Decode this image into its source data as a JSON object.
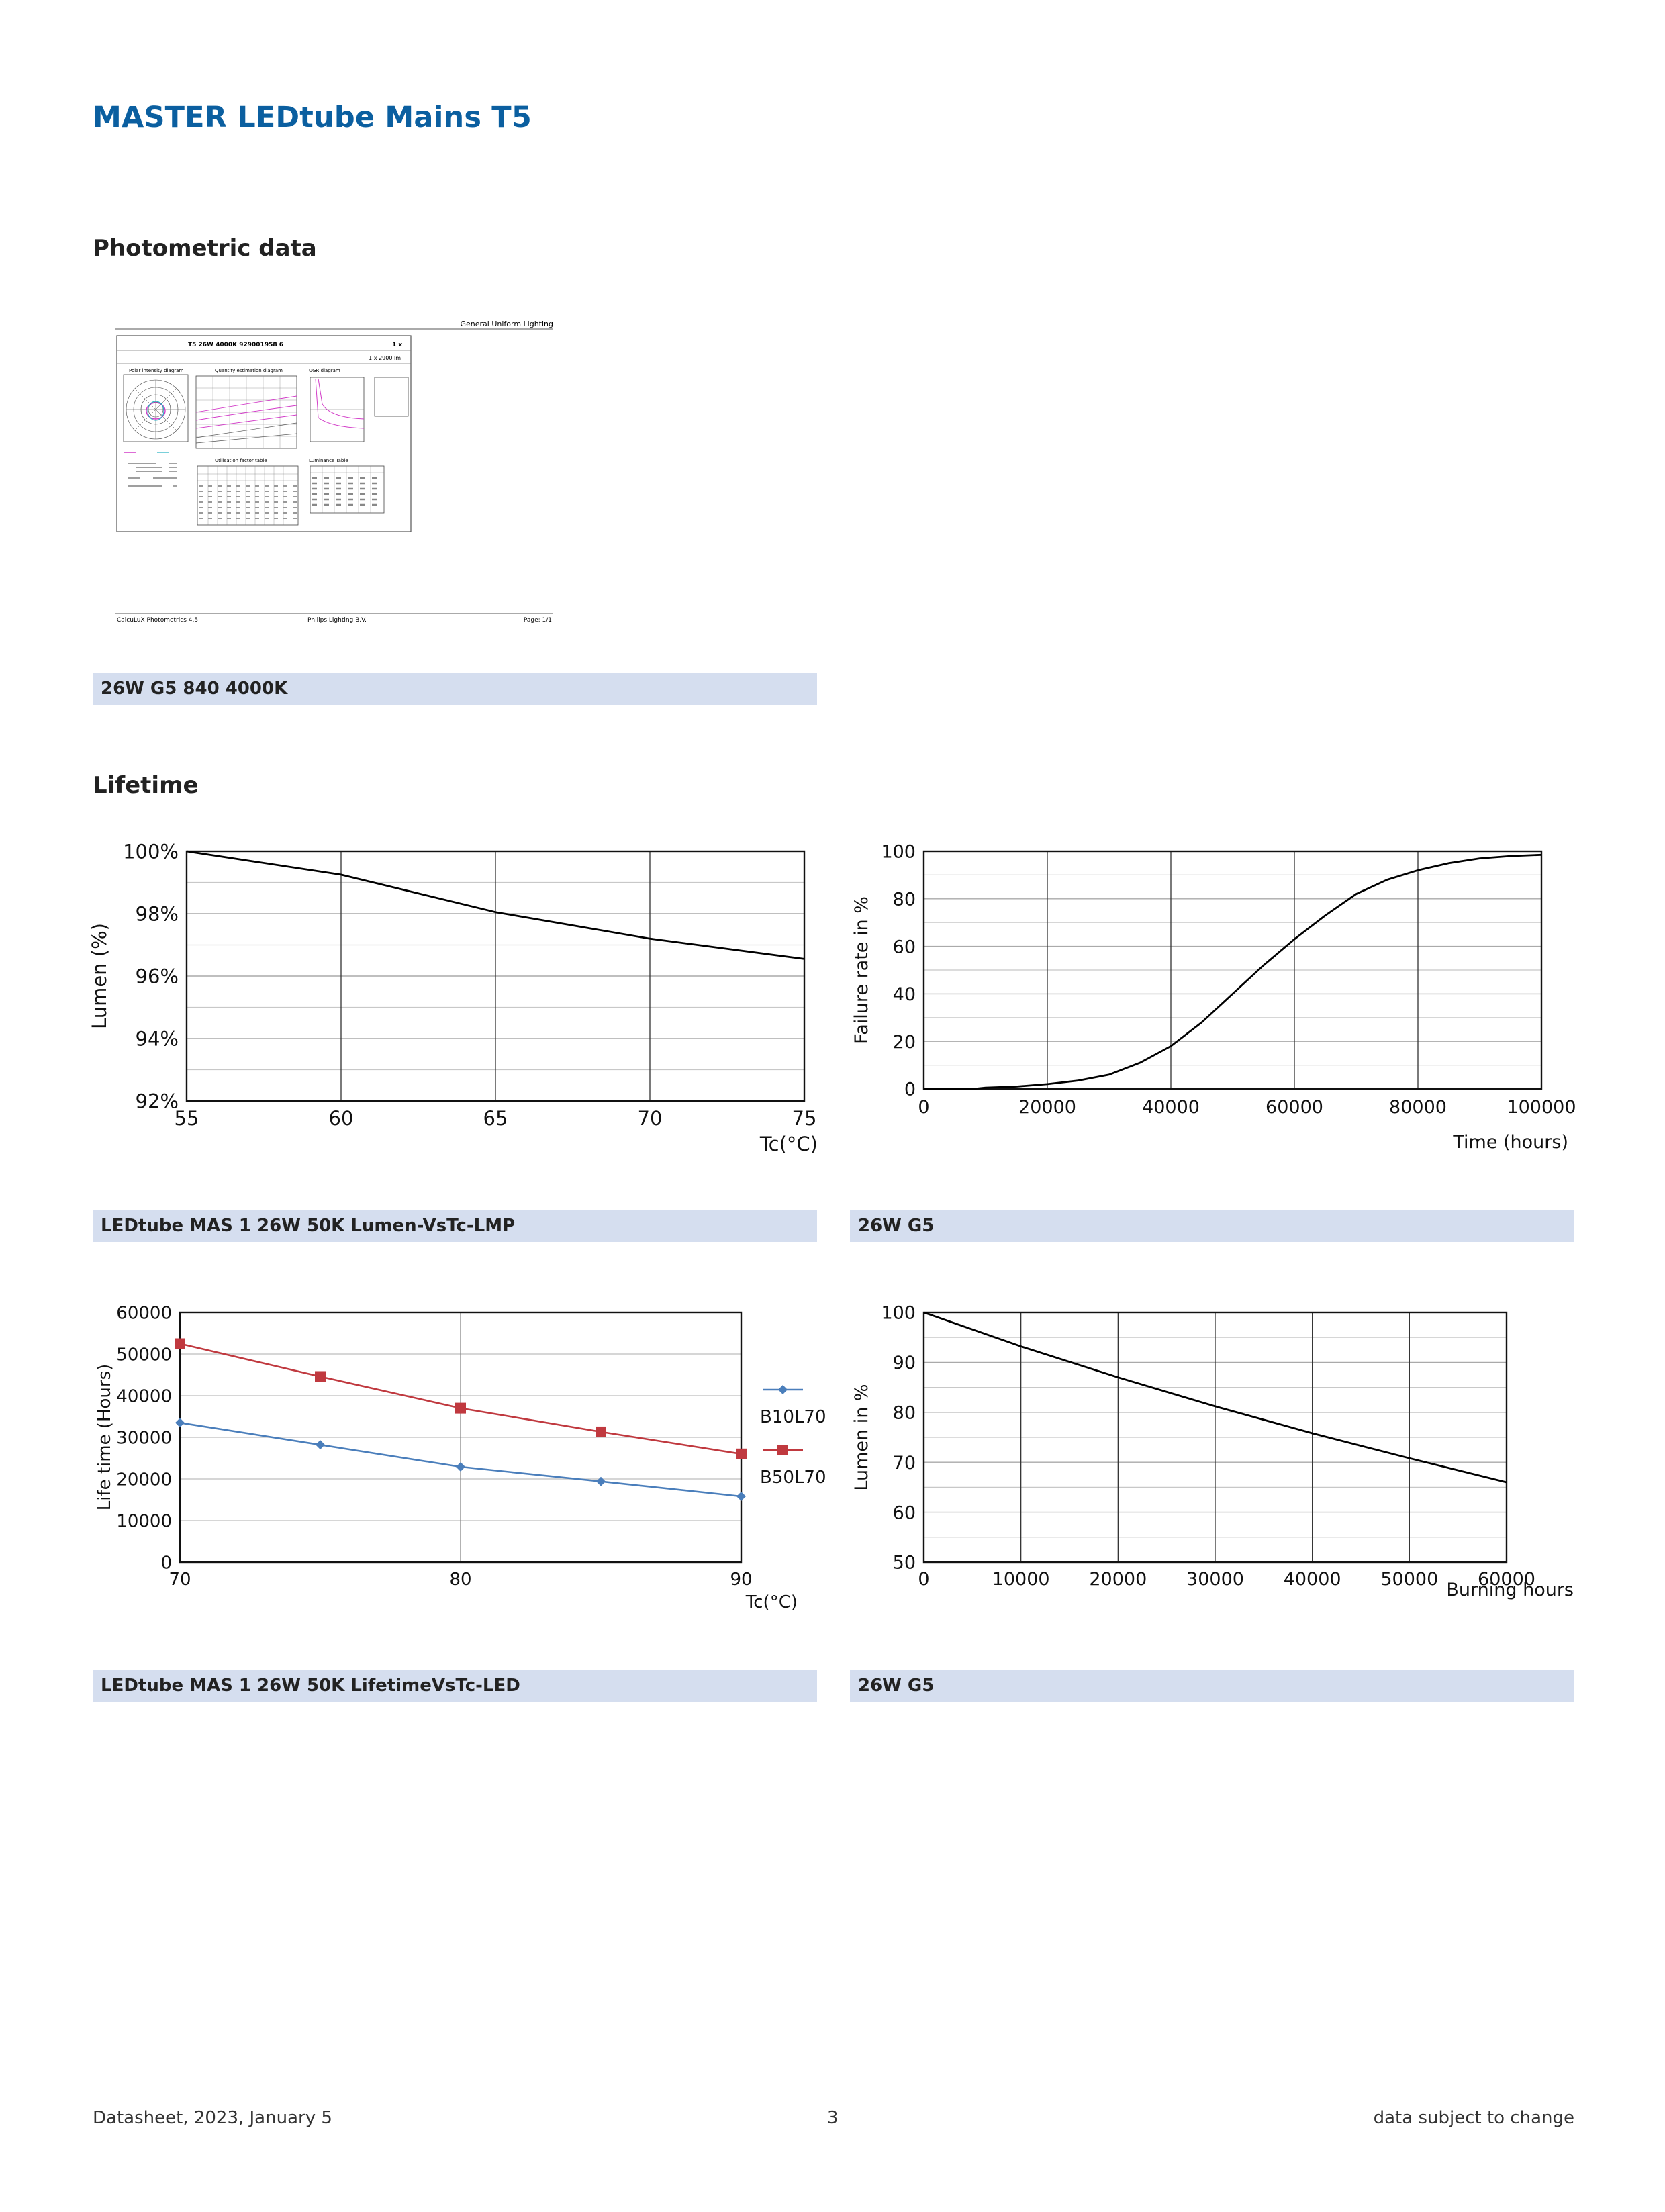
{
  "page_title": "MASTER LEDtube Mains T5",
  "sections": {
    "photometric": "Photometric data",
    "lifetime": "Lifetime"
  },
  "calculux": {
    "header_right": "General Uniform Lighting",
    "lamp_id": "T5 26W 4000K 929001958 6",
    "lamp_count": "1 x",
    "flux": "1 x 2900 lm",
    "panel_polar": "Polar intensity diagram",
    "panel_quantity": "Quantity estimation diagram",
    "panel_ugr": "UGR diagram",
    "panel_utilisation": "Utilisation factor table",
    "panel_luminance": "Luminance Table",
    "footer_left": "CalcuLuX Photometrics 4.5",
    "footer_mid": "Philips Lighting B.V.",
    "footer_right": "Page: 1/1"
  },
  "captions": {
    "photometric": "26W G5 840 4000K",
    "chart1": "LEDtube MAS 1 26W 50K Lumen-VsTc-LMP",
    "chart2": "26W G5",
    "chart3": "LEDtube MAS 1 26W 50K LifetimeVsTc-LED",
    "chart4": "26W G5"
  },
  "footer": {
    "left": "Datasheet, 2023, January 5",
    "center": "3",
    "right": "data subject to change"
  },
  "chart_data": [
    {
      "type": "line",
      "title": "",
      "xlabel": "Tc(°C)",
      "ylabel": "Lumen (%)",
      "xlim": [
        55,
        75
      ],
      "ylim": [
        92,
        100
      ],
      "xticks": [
        "55",
        "60",
        "65",
        "70",
        "75"
      ],
      "yticks": [
        "92%",
        "94%",
        "96%",
        "98%",
        "100%"
      ],
      "x": [
        55,
        60,
        65,
        70,
        75
      ],
      "series": [
        {
          "values": [
            100,
            99.25,
            98.05,
            97.2,
            96.55
          ]
        }
      ],
      "grid": true
    },
    {
      "type": "line",
      "title": "",
      "xlabel": "Time (hours)",
      "ylabel": "Failure rate in %",
      "xlim": [
        0,
        100000
      ],
      "ylim": [
        0,
        100
      ],
      "xticks": [
        "0",
        "20000",
        "40000",
        "60000",
        "80000",
        "100000"
      ],
      "yticks": [
        "0",
        "20",
        "40",
        "60",
        "80",
        "100"
      ],
      "x": [
        0,
        8000,
        10000,
        15000,
        20000,
        25000,
        30000,
        35000,
        40000,
        45000,
        50000,
        55000,
        60000,
        65000,
        70000,
        75000,
        80000,
        85000,
        90000,
        95000,
        100000
      ],
      "series": [
        {
          "values": [
            0,
            0,
            0.5,
            1,
            2,
            3.5,
            6,
            11,
            18,
            28,
            40,
            52,
            63,
            73,
            82,
            88,
            92,
            95,
            97,
            98,
            98.5
          ]
        }
      ],
      "grid": true
    },
    {
      "type": "line",
      "title": "",
      "xlabel": "Tc(°C)",
      "ylabel": "Life time (Hours)",
      "xlim": [
        70,
        90
      ],
      "ylim": [
        0,
        60000
      ],
      "xticks": [
        "70",
        "80",
        "90"
      ],
      "yticks": [
        "0",
        "10000",
        "20000",
        "30000",
        "40000",
        "50000",
        "60000"
      ],
      "x": [
        70,
        75,
        80,
        85,
        90
      ],
      "series": [
        {
          "name": "B10L70",
          "color": "#4a7ebb",
          "marker": "diamond",
          "values": [
            33500,
            28200,
            22900,
            19400,
            15800
          ]
        },
        {
          "name": "B50L70",
          "color": "#c0393f",
          "marker": "square",
          "values": [
            52500,
            44600,
            37000,
            31300,
            26000
          ]
        }
      ],
      "legend": "right",
      "grid": true
    },
    {
      "type": "line",
      "title": "",
      "xlabel": "Burning hours",
      "ylabel": "Lumen in %",
      "xlim": [
        0,
        60000
      ],
      "ylim": [
        50,
        100
      ],
      "xticks": [
        "0",
        "10000",
        "20000",
        "30000",
        "40000",
        "50000",
        "60000"
      ],
      "yticks": [
        "50",
        "60",
        "70",
        "80",
        "90",
        "100"
      ],
      "x": [
        0,
        10000,
        20000,
        30000,
        40000,
        50000,
        60000
      ],
      "series": [
        {
          "values": [
            100,
            93.2,
            87,
            81.2,
            75.8,
            70.8,
            66
          ]
        }
      ],
      "grid": true
    }
  ]
}
